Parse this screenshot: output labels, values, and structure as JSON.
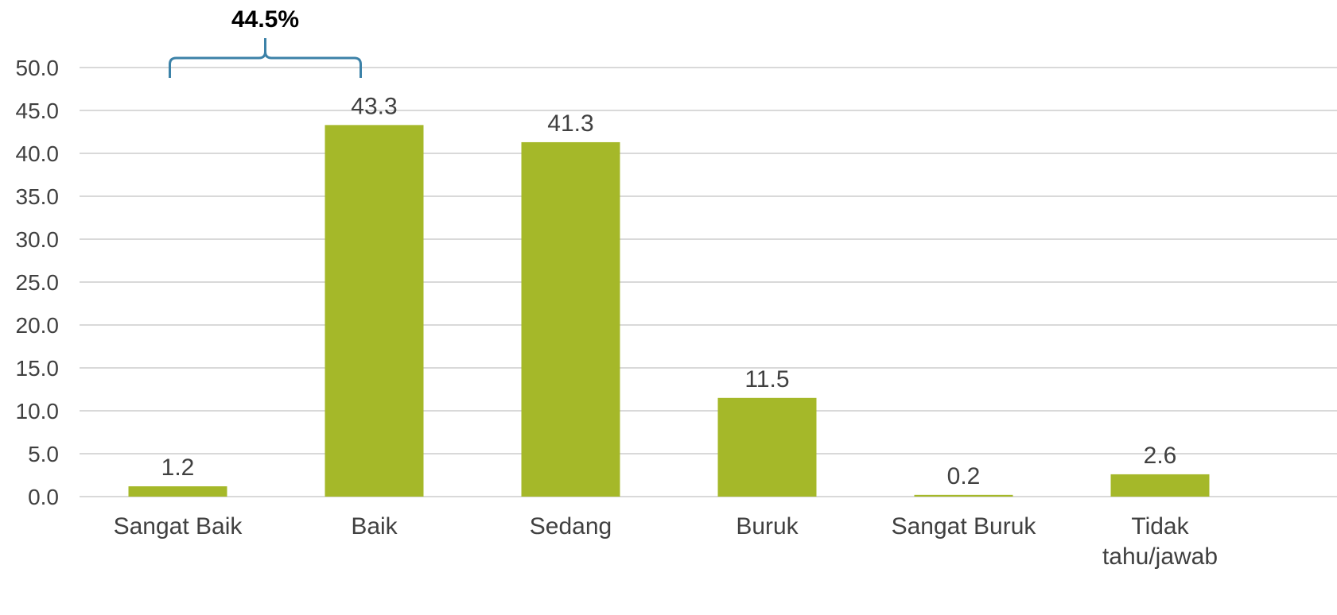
{
  "chart_data": {
    "type": "bar",
    "categories": [
      "Sangat Baik",
      "Baik",
      "Sedang",
      "Buruk",
      "Sangat Buruk",
      "Tidak tahu/jawab"
    ],
    "values": [
      1.2,
      43.3,
      41.3,
      11.5,
      0.2,
      2.6
    ],
    "data_labels": [
      "1.2",
      "43.3",
      "41.3",
      "11.5",
      "0.2",
      "2.6"
    ],
    "y_ticks": [
      "0.0",
      "5.0",
      "10.0",
      "15.0",
      "20.0",
      "25.0",
      "30.0",
      "35.0",
      "40.0",
      "45.0",
      "50.0"
    ],
    "ylim": [
      0,
      50
    ],
    "grid": true,
    "legend": "none",
    "bar_color": "#a5b829",
    "grid_color": "#d9d9d9",
    "annotation": {
      "text": "44.5%",
      "spans_categories": [
        "Sangat Baik",
        "Baik"
      ],
      "bracket_color": "#3c82a8"
    }
  }
}
